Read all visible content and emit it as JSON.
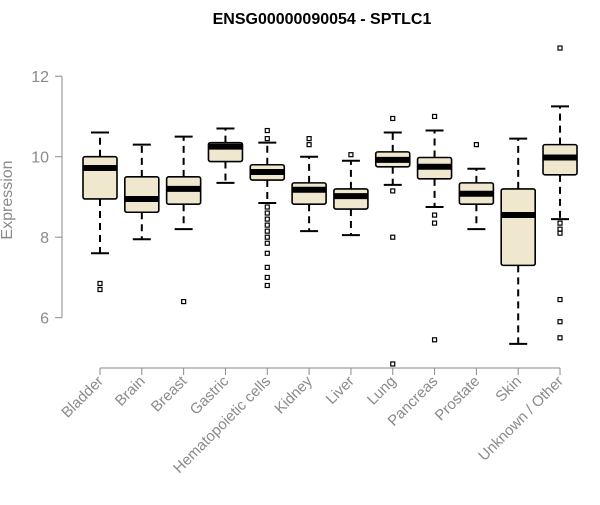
{
  "chart_data": {
    "type": "boxplot",
    "title": "ENSG00000090054 - SPTLC1",
    "xlabel": "",
    "ylabel": "Expression",
    "ylim": [
      4.7,
      12.9
    ],
    "yticks": [
      6,
      8,
      10,
      12
    ],
    "grid": false,
    "legend": "none",
    "colors": {
      "box_fill": "#efe8cf",
      "stroke": "#000000",
      "axis": "#8a8a8a",
      "label": "#8a8a8a",
      "title": "#000000"
    },
    "categories": [
      "Bladder",
      "Brain",
      "Breast",
      "Gastric",
      "Hematopoietic cells",
      "Kidney",
      "Liver",
      "Lung",
      "Pancreas",
      "Prostate",
      "Skin",
      "Unknown / Other"
    ],
    "boxes": [
      {
        "category": "Bladder",
        "whisker_low": 7.6,
        "q1": 8.95,
        "median": 9.72,
        "q3": 10.0,
        "whisker_high": 10.6,
        "outliers": [
          6.7,
          6.85
        ]
      },
      {
        "category": "Brain",
        "whisker_low": 7.95,
        "q1": 8.62,
        "median": 8.95,
        "q3": 9.5,
        "whisker_high": 10.3,
        "outliers": []
      },
      {
        "category": "Breast",
        "whisker_low": 8.2,
        "q1": 8.82,
        "median": 9.2,
        "q3": 9.5,
        "whisker_high": 10.5,
        "outliers": [
          6.4
        ]
      },
      {
        "category": "Gastric",
        "whisker_low": 9.35,
        "q1": 9.88,
        "median": 10.25,
        "q3": 10.35,
        "whisker_high": 10.7,
        "outliers": []
      },
      {
        "category": "Hematopoietic cells",
        "whisker_low": 8.85,
        "q1": 9.42,
        "median": 9.62,
        "q3": 9.8,
        "whisker_high": 10.35,
        "outliers": [
          6.8,
          7.0,
          7.25,
          7.6,
          7.85,
          8.0,
          8.15,
          8.3,
          8.45,
          8.6,
          8.75,
          10.45,
          10.65
        ]
      },
      {
        "category": "Kidney",
        "whisker_low": 8.15,
        "q1": 8.82,
        "median": 9.18,
        "q3": 9.35,
        "whisker_high": 10.0,
        "outliers": [
          10.3,
          10.45
        ]
      },
      {
        "category": "Liver",
        "whisker_low": 8.05,
        "q1": 8.7,
        "median": 9.02,
        "q3": 9.2,
        "whisker_high": 9.9,
        "outliers": [
          10.05
        ]
      },
      {
        "category": "Lung",
        "whisker_low": 9.3,
        "q1": 9.75,
        "median": 9.92,
        "q3": 10.12,
        "whisker_high": 10.6,
        "outliers": [
          4.85,
          8.0,
          9.15,
          10.95
        ]
      },
      {
        "category": "Pancreas",
        "whisker_low": 8.75,
        "q1": 9.45,
        "median": 9.75,
        "q3": 9.98,
        "whisker_high": 10.65,
        "outliers": [
          5.45,
          8.35,
          8.55,
          11.0
        ]
      },
      {
        "category": "Prostate",
        "whisker_low": 8.2,
        "q1": 8.82,
        "median": 9.08,
        "q3": 9.35,
        "whisker_high": 9.7,
        "outliers": [
          10.3
        ]
      },
      {
        "category": "Skin",
        "whisker_low": 5.35,
        "q1": 7.3,
        "median": 8.55,
        "q3": 9.2,
        "whisker_high": 10.45,
        "outliers": []
      },
      {
        "category": "Unknown / Other",
        "whisker_low": 8.45,
        "q1": 9.55,
        "median": 9.98,
        "q3": 10.3,
        "whisker_high": 11.25,
        "outliers": [
          5.5,
          5.9,
          6.45,
          8.1,
          8.2,
          8.35,
          12.7
        ]
      }
    ]
  }
}
